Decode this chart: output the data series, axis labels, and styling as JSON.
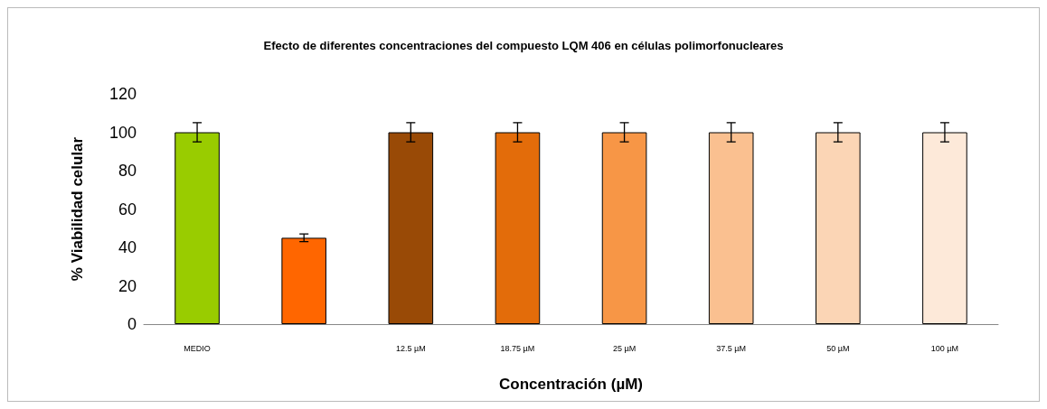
{
  "chart_data": {
    "type": "bar",
    "title": "Efecto de diferentes concentraciones del compuesto LQM 406 en células polimorfonucleares",
    "xlabel": "Concentración (µM)",
    "ylabel": "% Viabilidad celular",
    "categories": [
      "MEDIO",
      null,
      "12.5 µM",
      "18.75 µM",
      "25 µM",
      "37.5 µM",
      "50 µM",
      "100 µM"
    ],
    "values": [
      100,
      45,
      100,
      100,
      100,
      100,
      100,
      100
    ],
    "errors": [
      5,
      2,
      5,
      5,
      5,
      5,
      5,
      5
    ],
    "colors": [
      "#99cc00",
      "#ff6600",
      "#994a06",
      "#e36c0a",
      "#f79646",
      "#fac090",
      "#fbd5b5",
      "#fde9d9"
    ],
    "ylim": [
      0,
      120
    ],
    "yticks": [
      0,
      20,
      40,
      60,
      80,
      100,
      120
    ]
  }
}
